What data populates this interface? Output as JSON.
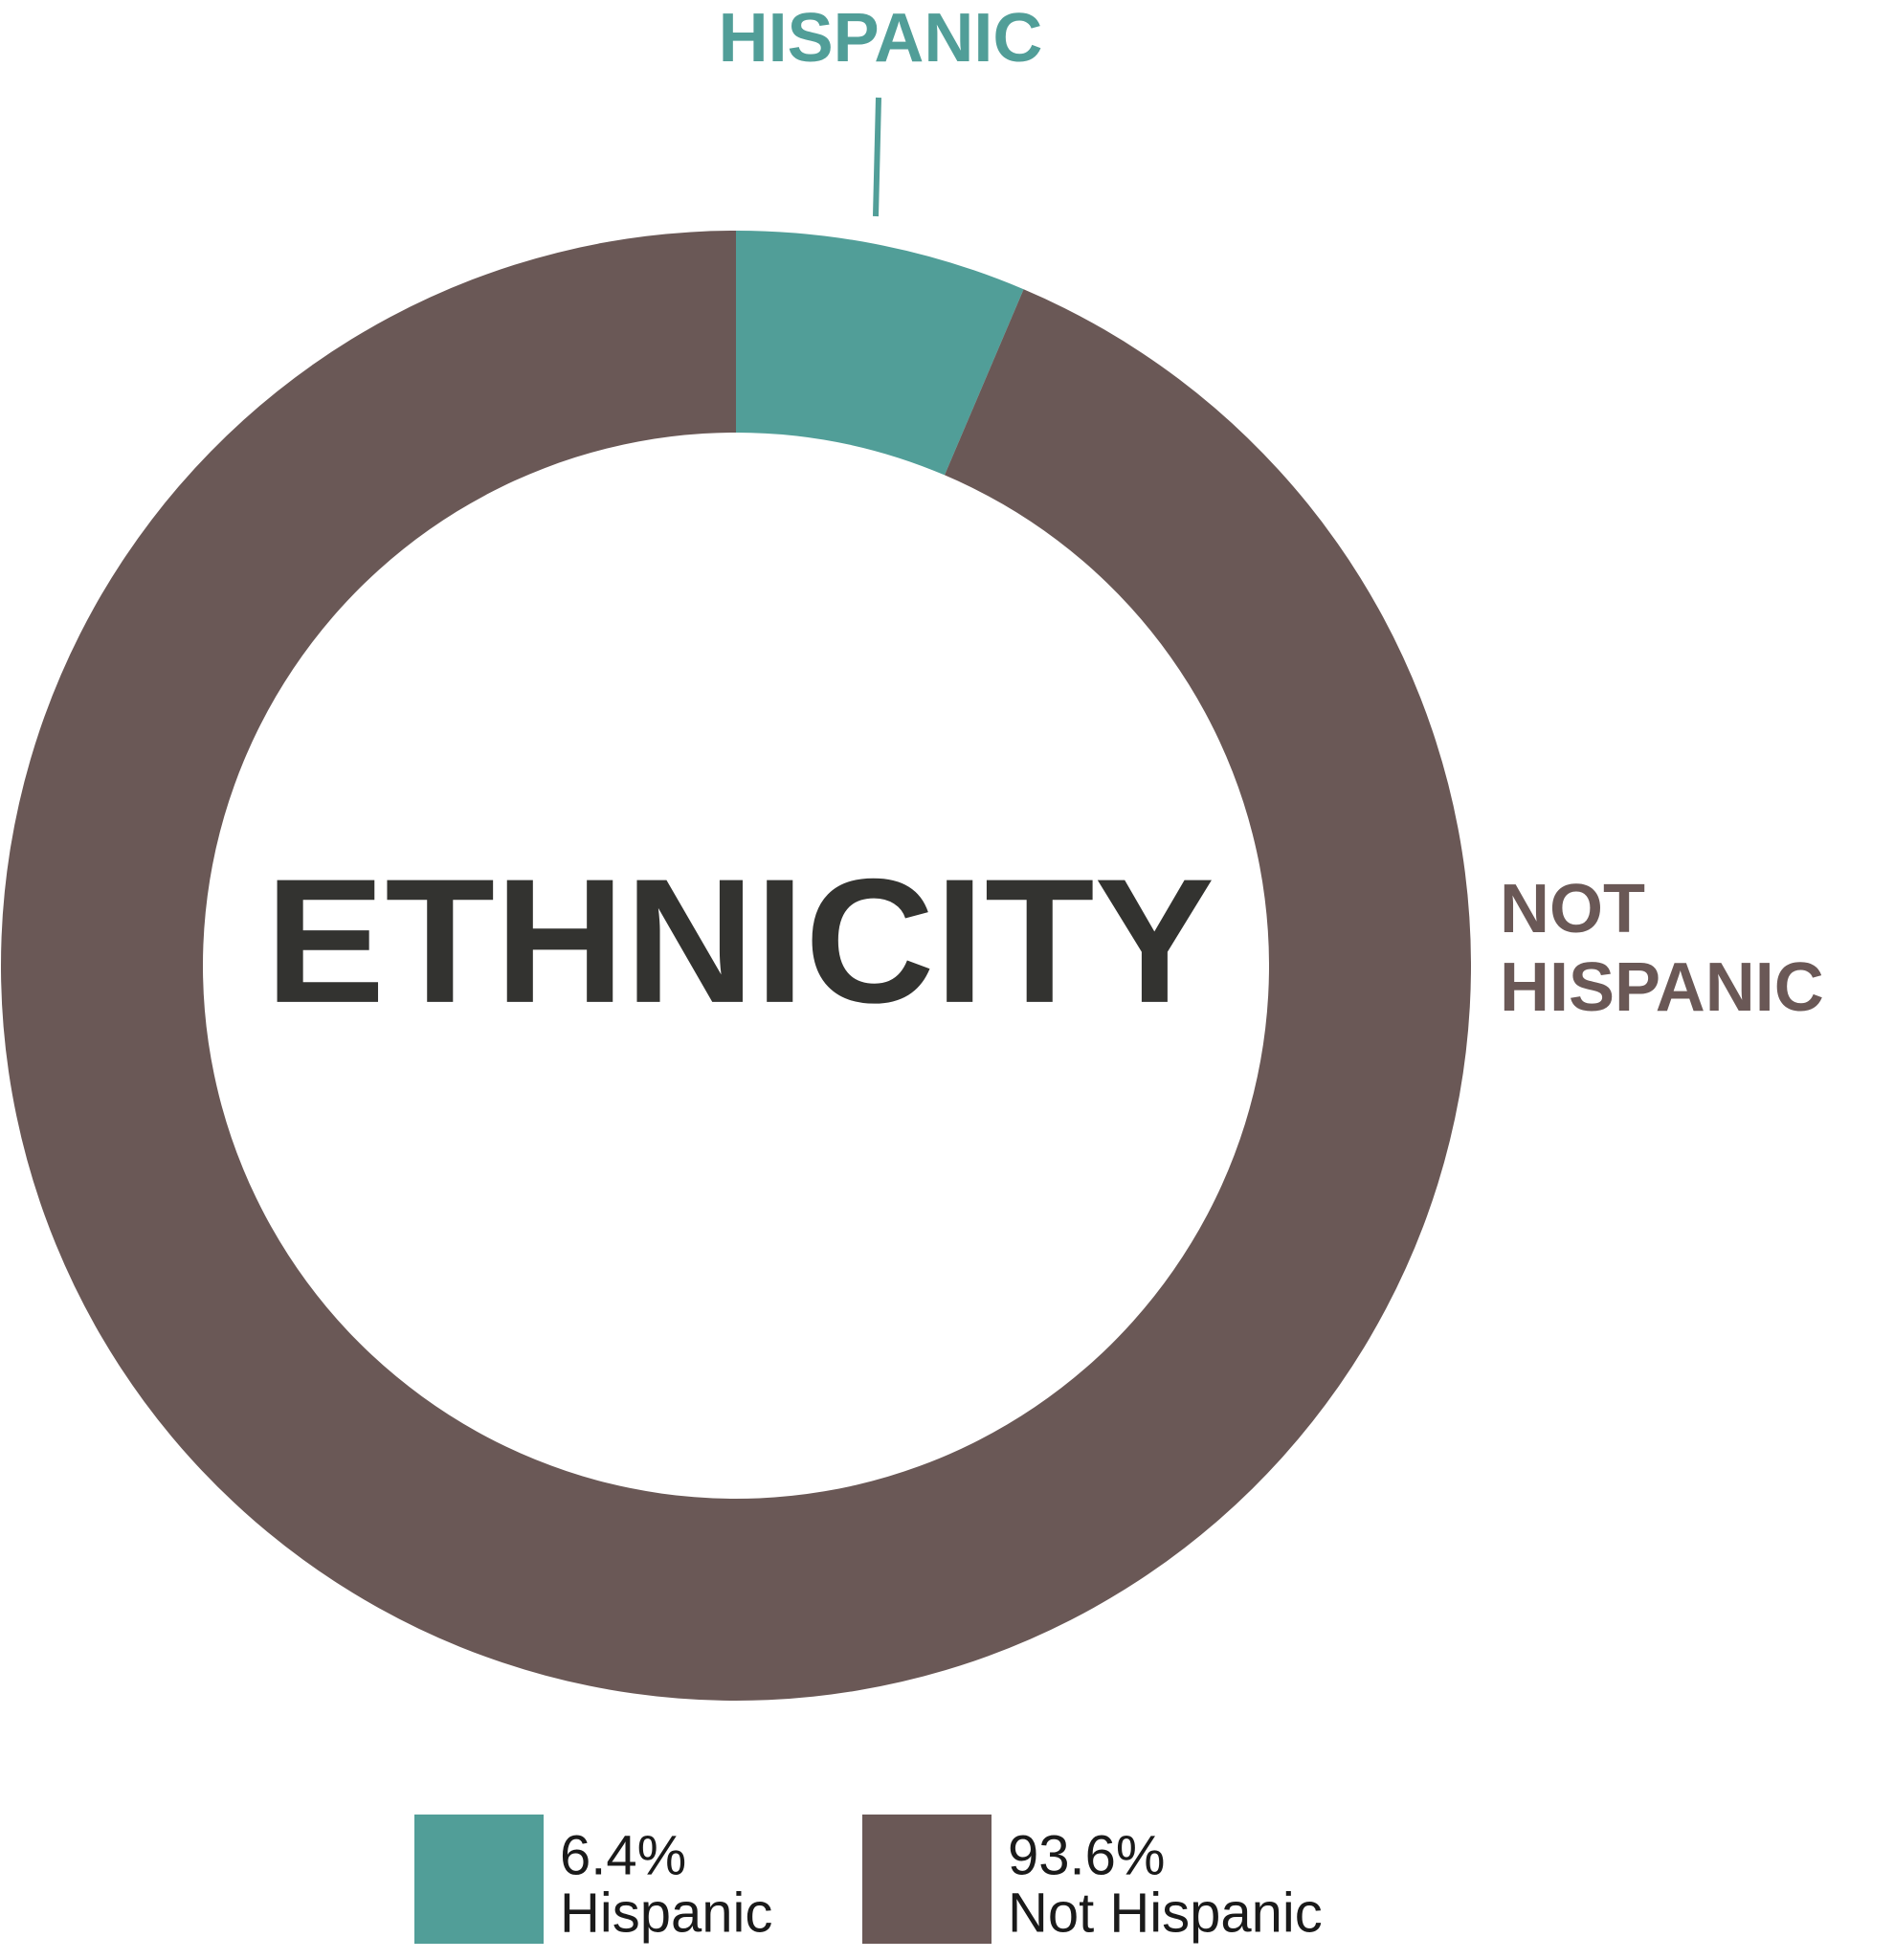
{
  "chart_data": {
    "type": "donut",
    "title": "ETHNICITY",
    "categories": [
      "Hispanic",
      "Not Hispanic"
    ],
    "values": [
      6.4,
      93.6
    ],
    "value_labels": [
      "6.4%",
      "93.6%"
    ],
    "colors": [
      "#519e98",
      "#6a5856"
    ],
    "slice_labels": [
      [
        "HISPANIC"
      ],
      [
        "NOT",
        "HISPANIC"
      ]
    ]
  }
}
